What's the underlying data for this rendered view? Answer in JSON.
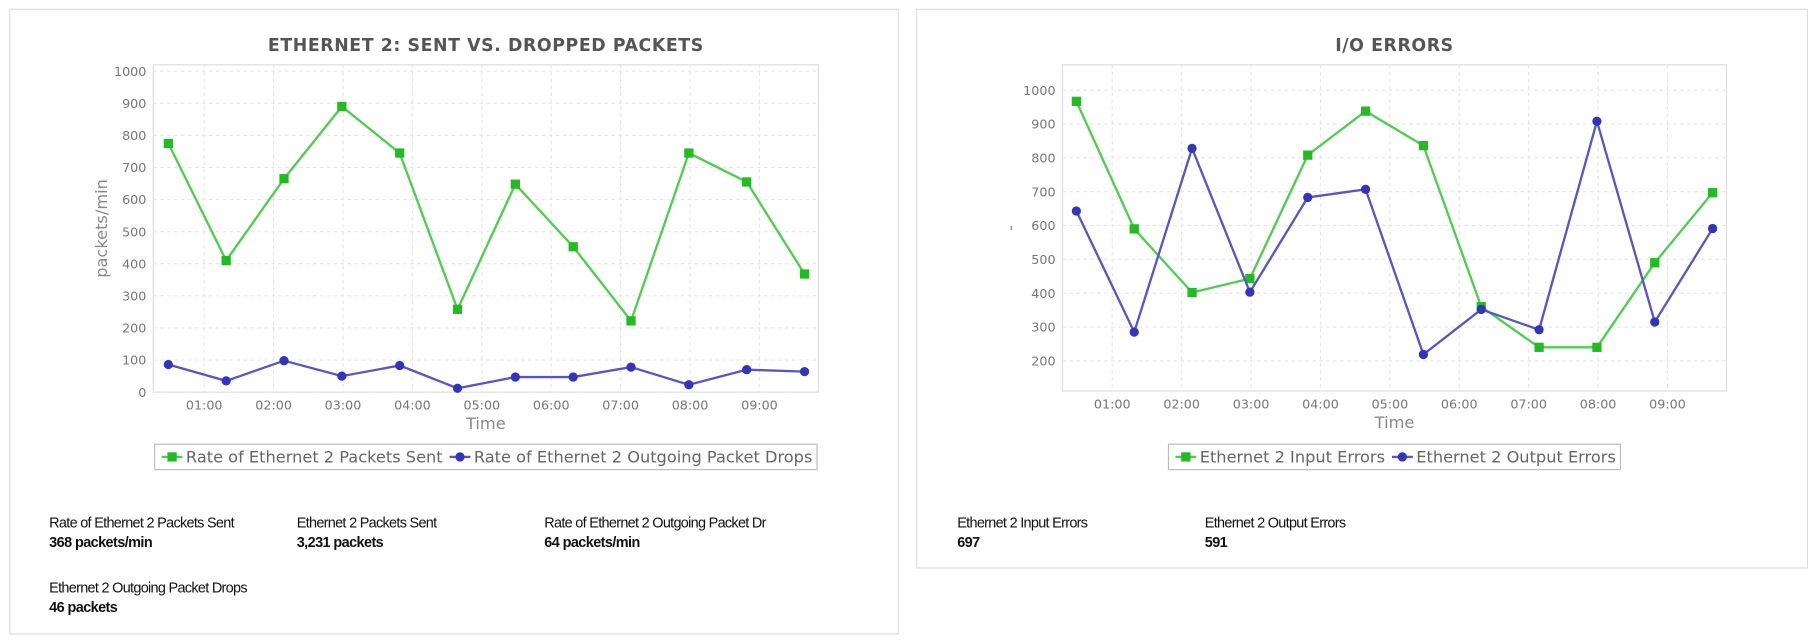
{
  "chart_data": [
    {
      "type": "line",
      "title": "ETHERNET 2: SENT VS. DROPPED PACKETS",
      "xlabel": "Time",
      "ylabel": "packets/min",
      "x": [
        29,
        79,
        129,
        179,
        229,
        279,
        329,
        379,
        429,
        479,
        529,
        579
      ],
      "xlim": [
        16,
        591
      ],
      "xticks": [
        {
          "value": 60,
          "label": "01:00"
        },
        {
          "value": 120,
          "label": "02:00"
        },
        {
          "value": 180,
          "label": "03:00"
        },
        {
          "value": 240,
          "label": "04:00"
        },
        {
          "value": 300,
          "label": "05:00"
        },
        {
          "value": 360,
          "label": "06:00"
        },
        {
          "value": 420,
          "label": "07:00"
        },
        {
          "value": 480,
          "label": "08:00"
        },
        {
          "value": 540,
          "label": "09:00"
        }
      ],
      "ylim": [
        0,
        1020
      ],
      "yticks": [
        0,
        100,
        200,
        300,
        400,
        500,
        600,
        700,
        800,
        900,
        1000
      ],
      "grid": true,
      "series": [
        {
          "name": "Rate of Ethernet 2 Packets Sent",
          "color": "#4ccf4c",
          "marker_color": "#22bb22",
          "marker": "square",
          "values": [
            775,
            410,
            665,
            890,
            745,
            258,
            648,
            453,
            222,
            745,
            655,
            368
          ]
        },
        {
          "name": "Rate of Ethernet 2 Outgoing Packet Drops",
          "color": "#5555cc",
          "marker_color": "#3333bb",
          "marker": "circle",
          "values": [
            86,
            35,
            98,
            50,
            83,
            12,
            47,
            47,
            78,
            23,
            70,
            64
          ]
        }
      ]
    },
    {
      "type": "line",
      "title": "I/O ERRORS",
      "xlabel": "Time",
      "ylabel": "-",
      "x": [
        29,
        79,
        129,
        179,
        229,
        279,
        329,
        379,
        429,
        479,
        529,
        579
      ],
      "xlim": [
        17,
        591
      ],
      "xticks": [
        {
          "value": 60,
          "label": "01:00"
        },
        {
          "value": 120,
          "label": "02:00"
        },
        {
          "value": 180,
          "label": "03:00"
        },
        {
          "value": 240,
          "label": "04:00"
        },
        {
          "value": 300,
          "label": "05:00"
        },
        {
          "value": 360,
          "label": "06:00"
        },
        {
          "value": 420,
          "label": "07:00"
        },
        {
          "value": 480,
          "label": "08:00"
        },
        {
          "value": 540,
          "label": "09:00"
        }
      ],
      "ylim": [
        111,
        1075
      ],
      "yticks": [
        200,
        300,
        400,
        500,
        600,
        700,
        800,
        900,
        1000
      ],
      "grid": true,
      "series": [
        {
          "name": "Ethernet 2 Input Errors",
          "color": "#4ccf4c",
          "marker_color": "#22bb22",
          "marker": "square",
          "values": [
            967,
            590,
            402,
            443,
            808,
            938,
            836,
            360,
            240,
            240,
            490,
            697
          ]
        },
        {
          "name": "Ethernet 2 Output Errors",
          "color": "#5555cc",
          "marker_color": "#3333bb",
          "marker": "circle",
          "values": [
            643,
            285,
            828,
            403,
            683,
            707,
            219,
            352,
            292,
            908,
            315,
            591
          ]
        }
      ]
    }
  ],
  "stats": [
    [
      {
        "label": "Rate of Ethernet 2 Packets Sent",
        "value": "368 packets/min"
      },
      {
        "label": "Ethernet 2 Packets Sent",
        "value": "3,231 packets"
      },
      {
        "label": "Rate of Ethernet 2 Outgoing Packet Dr",
        "value": "64 packets/min"
      },
      {
        "label": "Ethernet 2 Outgoing Packet Drops",
        "value": "46 packets"
      }
    ],
    [
      {
        "label": "Ethernet 2 Input Errors",
        "value": "697"
      },
      {
        "label": "Ethernet 2 Output Errors",
        "value": "591"
      }
    ]
  ]
}
